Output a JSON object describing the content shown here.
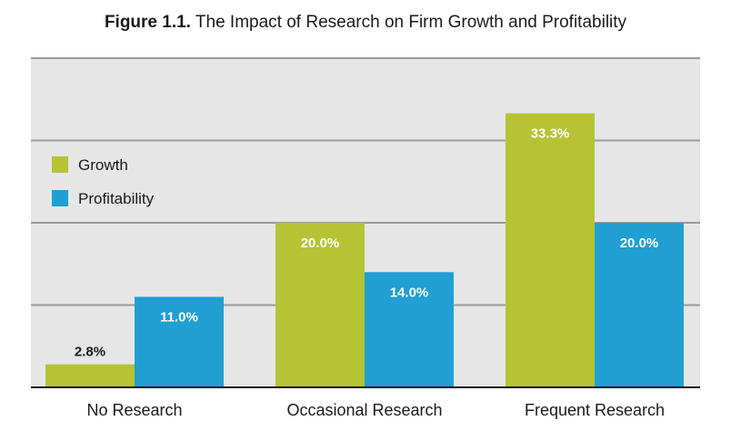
{
  "figure": {
    "number": "Figure 1.1.",
    "caption": "The Impact of Research on Firm Growth and Profitability"
  },
  "colors": {
    "plot_background": "#e6e6e6",
    "gridline": "#9b9b9b",
    "baseline": "#111111",
    "growth": "#b5c334",
    "profitability": "#209fd2",
    "label_on_bar": "#ffffff",
    "label_outside_bar": "#1a1a1a"
  },
  "chart_data": {
    "type": "bar",
    "title": "Figure 1.1. The Impact of Research on Firm Growth and Profitability",
    "categories": [
      "No Research",
      "Occasional Research",
      "Frequent Research"
    ],
    "series": [
      {
        "name": "Growth",
        "values": [
          2.8,
          20.0,
          33.3
        ],
        "labels": [
          "2.8%",
          "20.0%",
          "33.3%"
        ]
      },
      {
        "name": "Profitability",
        "values": [
          11.0,
          14.0,
          20.0
        ],
        "labels": [
          "11.0%",
          "14.0%",
          "20.0%"
        ]
      }
    ],
    "xlabel": "",
    "ylabel": "",
    "ylim": [
      0,
      40
    ],
    "y_gridlines": [
      10,
      20,
      30,
      40
    ],
    "y_tick_labels_shown": false,
    "grid": true,
    "legend_position": "left"
  }
}
